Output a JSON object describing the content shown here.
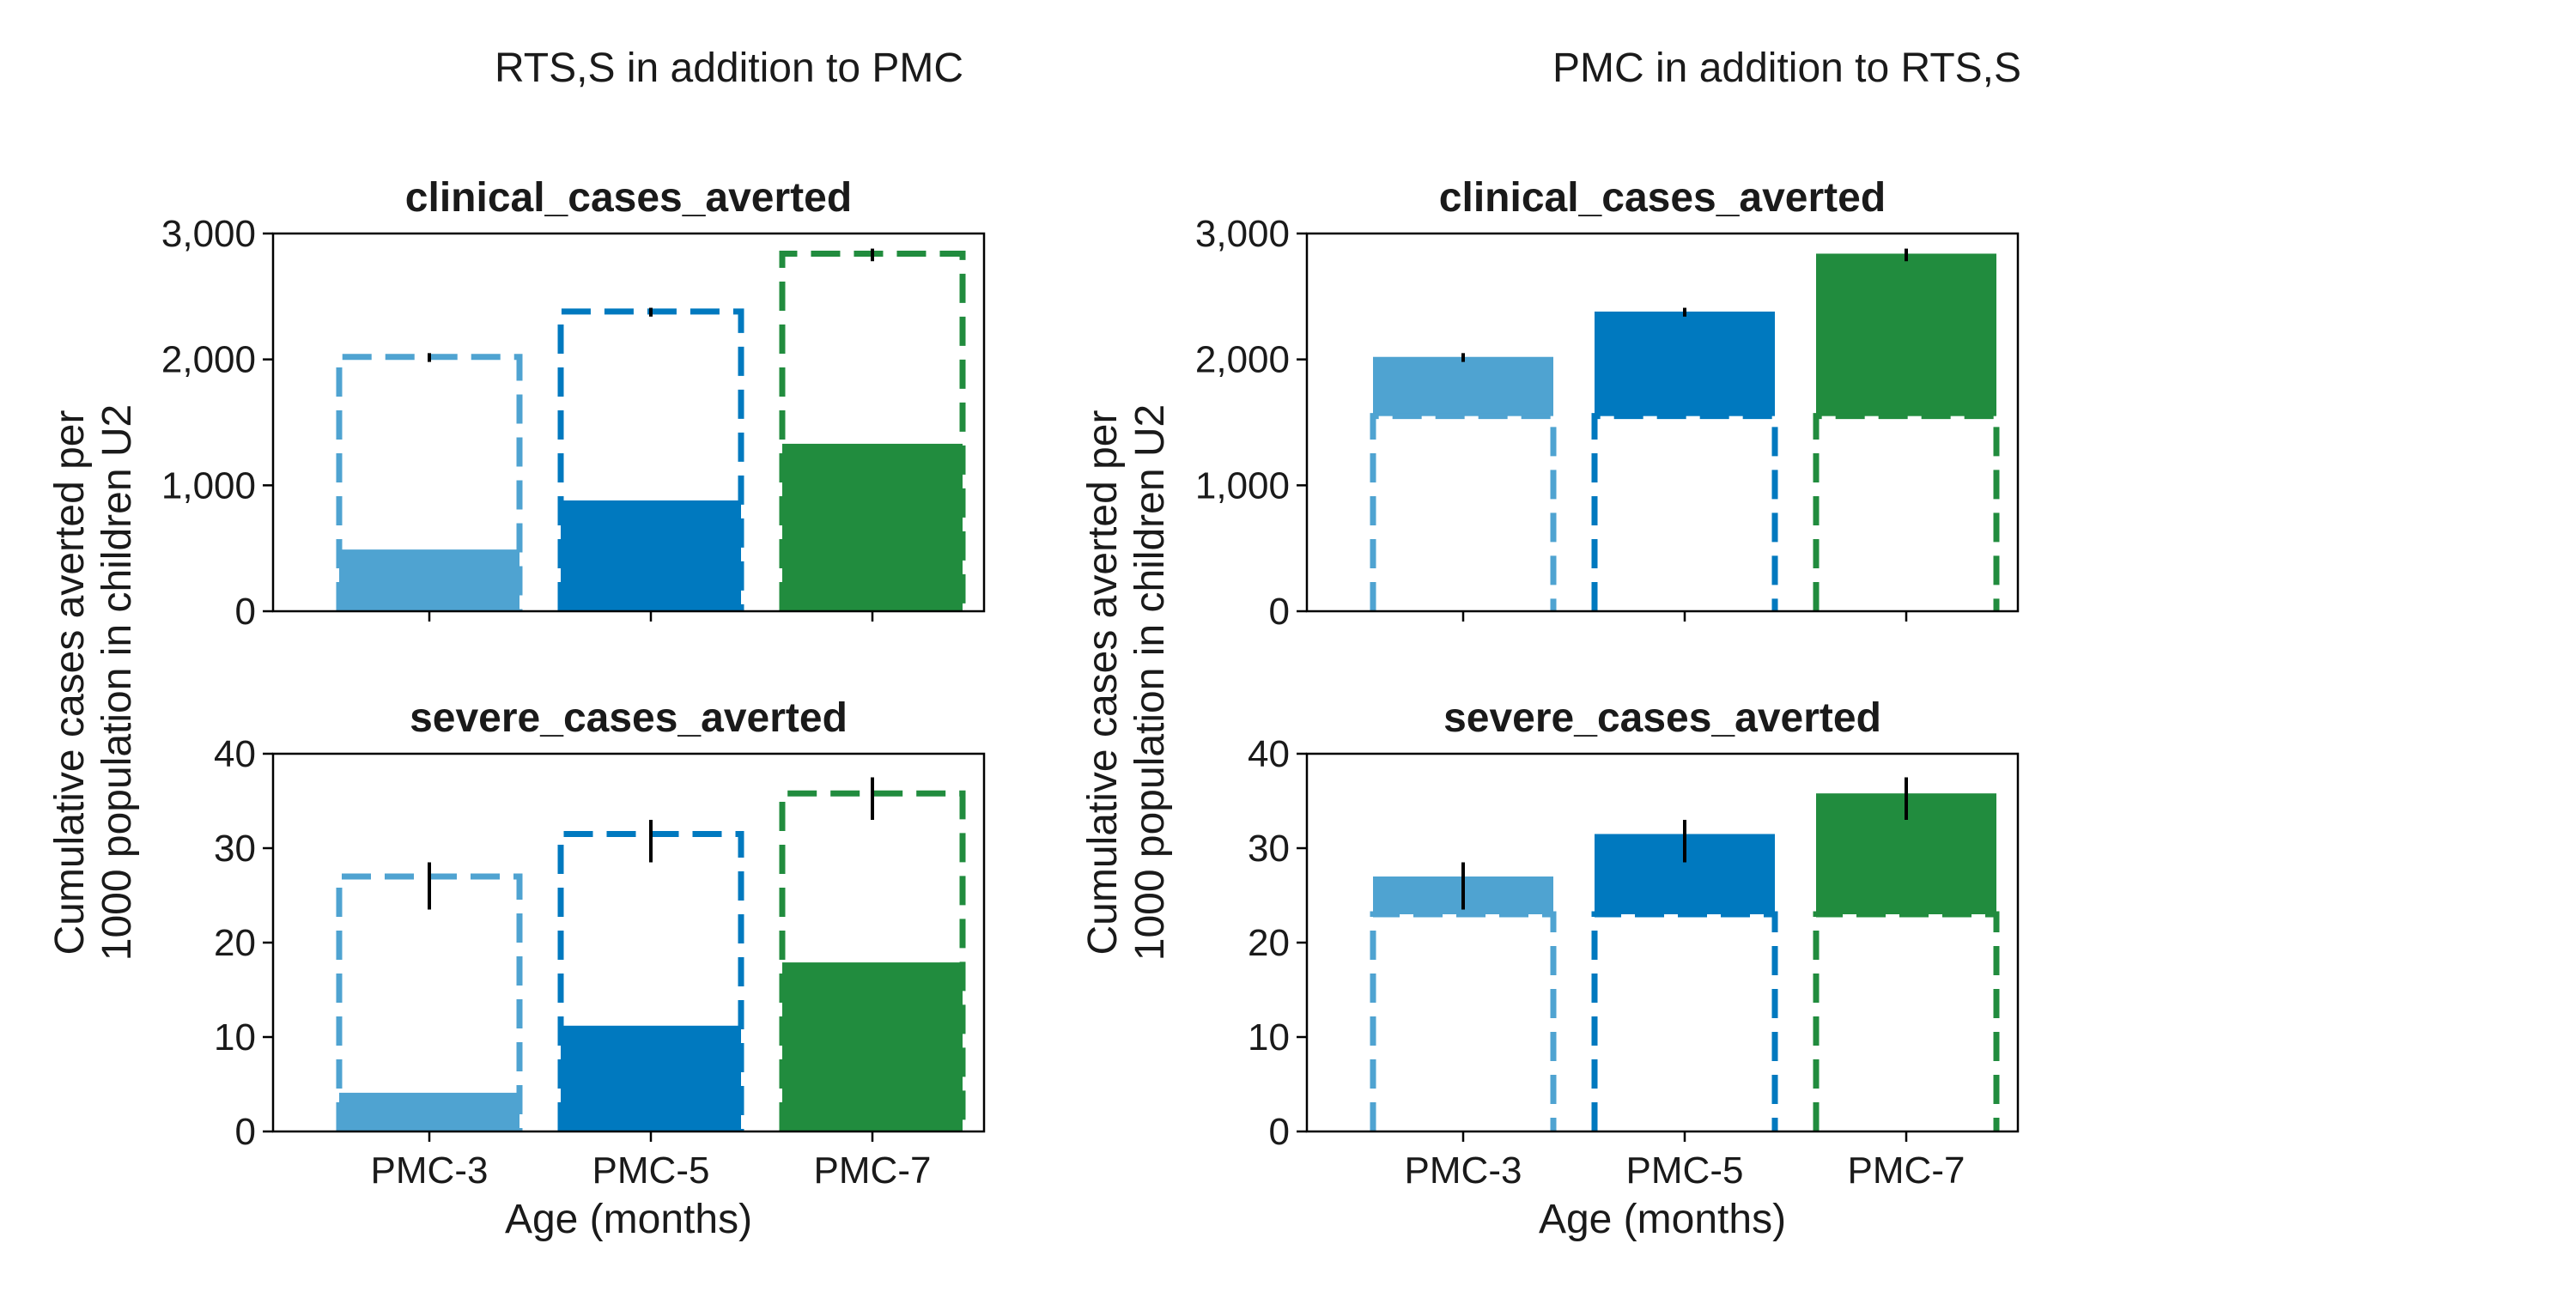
{
  "colors": {
    "PMC-3": "#4fa3d1",
    "PMC-5": "#0079bf",
    "PMC-7": "#218c3e",
    "frame": "#000000",
    "error_bar": "#000000"
  },
  "chart_data": [
    {
      "type": "bar",
      "group_title": "RTS,S in addition to PMC",
      "title": "clinical_cases_averted",
      "categories": [
        "PMC-3",
        "PMC-5",
        "PMC-7"
      ],
      "series": [
        {
          "name": "",
          "style": "solid-fill",
          "values": [
            490,
            880,
            1330
          ]
        },
        {
          "name": "",
          "style": "dashed-outline",
          "values": [
            2020,
            2380,
            2840
          ]
        }
      ],
      "error_bars": [
        [
          1980,
          2050
        ],
        [
          2340,
          2410
        ],
        [
          2780,
          2880
        ]
      ],
      "ylim": [
        0,
        3000
      ],
      "yticks": [
        0,
        1000,
        2000,
        3000
      ],
      "ytick_labels": [
        "0",
        "1,000",
        "2,000",
        "3,000"
      ],
      "ylabel": "",
      "xlabel": "",
      "show_x_tick_labels": false
    },
    {
      "type": "bar",
      "title": "severe_cases_averted",
      "categories": [
        "PMC-3",
        "PMC-5",
        "PMC-7"
      ],
      "series": [
        {
          "name": "",
          "style": "solid-fill",
          "values": [
            4.1,
            11.2,
            17.9
          ]
        },
        {
          "name": "",
          "style": "dashed-outline",
          "values": [
            27.0,
            31.5,
            35.8
          ]
        }
      ],
      "error_bars": [
        [
          23.5,
          28.5
        ],
        [
          28.5,
          33.0
        ],
        [
          33.0,
          37.5
        ]
      ],
      "ylim": [
        0,
        40
      ],
      "yticks": [
        0,
        10,
        20,
        30,
        40
      ],
      "ytick_labels": [
        "0",
        "10",
        "20",
        "30",
        "40"
      ],
      "ylabel": "",
      "xlabel": "Age (months)",
      "show_x_tick_labels": true
    },
    {
      "type": "bar",
      "group_title": "PMC in addition to RTS,S",
      "title": "clinical_cases_averted",
      "categories": [
        "PMC-3",
        "PMC-5",
        "PMC-7"
      ],
      "series": [
        {
          "name": "",
          "style": "solid-fill",
          "values": [
            2020,
            2380,
            2840
          ],
          "baseline": 1550
        },
        {
          "name": "",
          "style": "dashed-outline",
          "values": [
            1550,
            1550,
            1550
          ]
        }
      ],
      "error_bars": [
        [
          1980,
          2050
        ],
        [
          2340,
          2410
        ],
        [
          2780,
          2880
        ]
      ],
      "ylim": [
        0,
        3000
      ],
      "yticks": [
        0,
        1000,
        2000,
        3000
      ],
      "ytick_labels": [
        "0",
        "1,000",
        "2,000",
        "3,000"
      ],
      "ylabel": "",
      "xlabel": "",
      "show_x_tick_labels": false
    },
    {
      "type": "bar",
      "title": "severe_cases_averted",
      "categories": [
        "PMC-3",
        "PMC-5",
        "PMC-7"
      ],
      "series": [
        {
          "name": "",
          "style": "solid-fill",
          "values": [
            27.0,
            31.5,
            35.8
          ],
          "baseline": 23.0
        },
        {
          "name": "",
          "style": "dashed-outline",
          "values": [
            23.0,
            23.0,
            23.0
          ]
        }
      ],
      "error_bars": [
        [
          23.5,
          28.5
        ],
        [
          28.5,
          33.0
        ],
        [
          33.0,
          37.5
        ]
      ],
      "ylim": [
        0,
        40
      ],
      "yticks": [
        0,
        10,
        20,
        30,
        40
      ],
      "ytick_labels": [
        "0",
        "10",
        "20",
        "30",
        "40"
      ],
      "ylabel": "",
      "xlabel": "Age (months)",
      "show_x_tick_labels": true
    }
  ],
  "shared_ylabel": [
    "Cumulative cases averted per",
    "1000 population in children U2"
  ]
}
